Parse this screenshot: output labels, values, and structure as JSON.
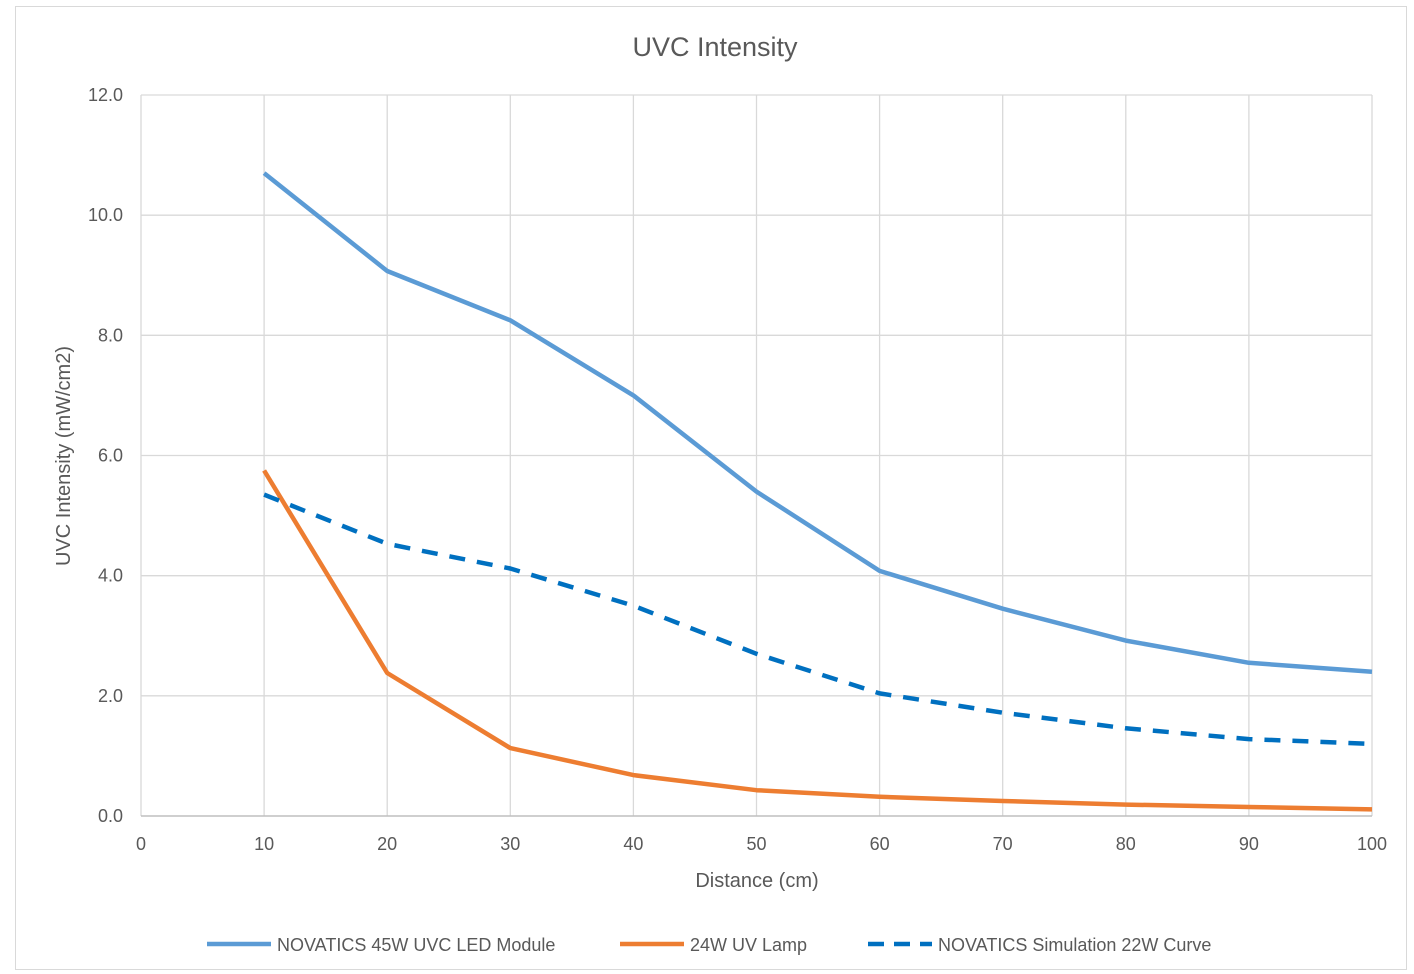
{
  "chart_data": {
    "type": "line",
    "title": "UVC Intensity",
    "xlabel": "Distance (cm)",
    "ylabel": "UVC Intensity (mW/cm2)",
    "xlim": [
      0,
      100
    ],
    "ylim": [
      0,
      12
    ],
    "x_ticks": [
      "0",
      "10",
      "20",
      "30",
      "40",
      "50",
      "60",
      "70",
      "80",
      "90",
      "100"
    ],
    "y_ticks": [
      "0.0",
      "2.0",
      "4.0",
      "6.0",
      "8.0",
      "10.0",
      "12.0"
    ],
    "grid": true,
    "legend_position": "bottom",
    "x": [
      10,
      20,
      30,
      40,
      50,
      60,
      70,
      80,
      90,
      100
    ],
    "series": [
      {
        "name": "NOVATICS 45W UVC LED Module",
        "values": [
          10.7,
          9.07,
          8.25,
          7.0,
          5.4,
          4.08,
          3.45,
          2.92,
          2.55,
          2.4
        ],
        "color": "#5b9bd5",
        "style": "solid"
      },
      {
        "name": "24W UV Lamp",
        "values": [
          5.75,
          2.38,
          1.13,
          0.68,
          0.43,
          0.32,
          0.25,
          0.19,
          0.15,
          0.11
        ],
        "color": "#ed7d31",
        "style": "solid"
      },
      {
        "name": "NOVATICS Simulation 22W Curve",
        "values": [
          5.35,
          4.53,
          4.12,
          3.5,
          2.7,
          2.04,
          1.72,
          1.46,
          1.28,
          1.2
        ],
        "color": "#0070c0",
        "style": "dashed"
      }
    ]
  }
}
